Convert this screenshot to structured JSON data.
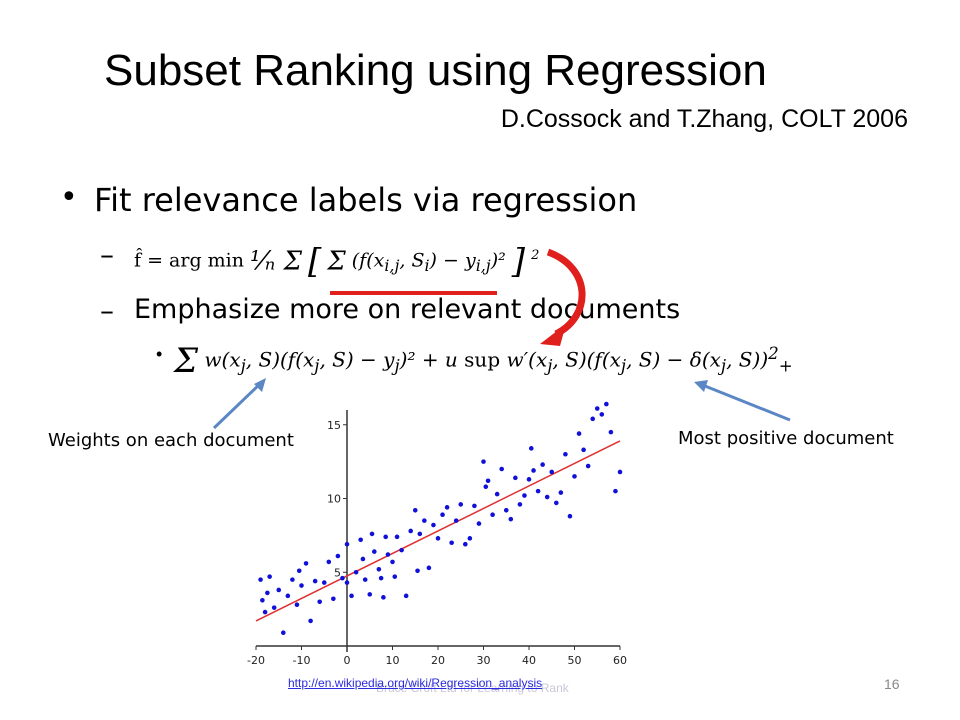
{
  "slide": {
    "title": "Subset Ranking using Regression",
    "subtitle": "D.Cossock and T.Zhang, COLT 2006",
    "bullet1": "Fit relevance labels via regression",
    "sub_bullet2": "Emphasize more on relevant documents",
    "label_weights": "Weights on each document",
    "label_positive": "Most positive document",
    "footer_link": "http://en.wikipedia.org/wiki/Regression_analysis",
    "footer_ghost": "Bruce Croft Ltd for Learning to Rank",
    "page_number": "16"
  },
  "colors": {
    "red_accent": "#e0201c",
    "arrow_blue": "#5b87c5",
    "plot_points": "#1010d8",
    "fit_line": "#e03030"
  },
  "chart_data": {
    "type": "scatter",
    "title": "",
    "xlabel": "",
    "ylabel": "",
    "xlim": [
      -20,
      60
    ],
    "ylim": [
      0,
      16
    ],
    "x_ticks": [
      -20,
      -10,
      0,
      10,
      20,
      30,
      40,
      50,
      60
    ],
    "y_ticks": [
      5,
      10,
      15
    ],
    "fit_line": {
      "x": [
        -20,
        60
      ],
      "y": [
        1.7,
        13.9
      ]
    },
    "points": [
      [
        -19,
        4.5
      ],
      [
        -18.6,
        3.1
      ],
      [
        -18,
        2.3
      ],
      [
        -17.5,
        3.6
      ],
      [
        -17,
        4.7
      ],
      [
        -16,
        2.6
      ],
      [
        -15,
        3.8
      ],
      [
        -14,
        0.9
      ],
      [
        -13,
        3.4
      ],
      [
        -12,
        4.5
      ],
      [
        -11,
        2.8
      ],
      [
        -10.5,
        5.1
      ],
      [
        -10,
        4.1
      ],
      [
        -9,
        5.6
      ],
      [
        -8,
        1.7
      ],
      [
        -7,
        4.4
      ],
      [
        -6,
        3.0
      ],
      [
        -5,
        4.3
      ],
      [
        -4,
        5.7
      ],
      [
        -3,
        3.2
      ],
      [
        -2,
        6.1
      ],
      [
        -1,
        4.6
      ],
      [
        0,
        4.3
      ],
      [
        0,
        6.9
      ],
      [
        1,
        3.4
      ],
      [
        2,
        5.0
      ],
      [
        3,
        7.2
      ],
      [
        3.5,
        5.9
      ],
      [
        4,
        4.5
      ],
      [
        5,
        3.5
      ],
      [
        5.5,
        7.6
      ],
      [
        6,
        6.4
      ],
      [
        7,
        5.2
      ],
      [
        7.5,
        4.6
      ],
      [
        8,
        3.3
      ],
      [
        8.5,
        7.4
      ],
      [
        9,
        6.2
      ],
      [
        10,
        5.7
      ],
      [
        10.5,
        4.7
      ],
      [
        11,
        7.4
      ],
      [
        12,
        6.5
      ],
      [
        13,
        3.4
      ],
      [
        14,
        7.8
      ],
      [
        15,
        9.2
      ],
      [
        15.5,
        5.1
      ],
      [
        16,
        7.6
      ],
      [
        17,
        8.5
      ],
      [
        18,
        5.3
      ],
      [
        19,
        8.2
      ],
      [
        20,
        7.3
      ],
      [
        21,
        8.9
      ],
      [
        22,
        9.4
      ],
      [
        23,
        7.0
      ],
      [
        24,
        8.5
      ],
      [
        25,
        9.6
      ],
      [
        26,
        6.9
      ],
      [
        27,
        7.3
      ],
      [
        28,
        9.5
      ],
      [
        29,
        8.3
      ],
      [
        30,
        12.5
      ],
      [
        30.5,
        10.8
      ],
      [
        31,
        11.2
      ],
      [
        32,
        8.9
      ],
      [
        33,
        10.3
      ],
      [
        34,
        12.0
      ],
      [
        35,
        9.2
      ],
      [
        36,
        8.6
      ],
      [
        37,
        11.4
      ],
      [
        38,
        9.6
      ],
      [
        39,
        10.2
      ],
      [
        40,
        11.3
      ],
      [
        40.5,
        13.4
      ],
      [
        41,
        11.9
      ],
      [
        42,
        10.5
      ],
      [
        43,
        12.3
      ],
      [
        44,
        10.1
      ],
      [
        45,
        11.8
      ],
      [
        46,
        9.7
      ],
      [
        47,
        10.4
      ],
      [
        48,
        13.0
      ],
      [
        49,
        8.8
      ],
      [
        50,
        11.5
      ],
      [
        51,
        14.4
      ],
      [
        52,
        13.3
      ],
      [
        53,
        12.2
      ],
      [
        54,
        15.4
      ],
      [
        55,
        16.1
      ],
      [
        56,
        15.7
      ],
      [
        57,
        16.4
      ],
      [
        58,
        14.5
      ],
      [
        59,
        10.5
      ],
      [
        60,
        11.8
      ]
    ]
  }
}
